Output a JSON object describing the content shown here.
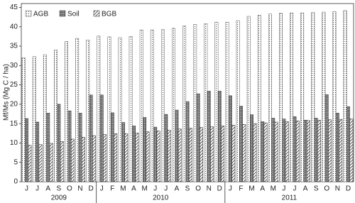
{
  "chart_data": {
    "type": "bar",
    "y_label": "Mf/Ms (Mg C / ha)",
    "categories": [
      "J",
      "J",
      "A",
      "S",
      "O",
      "N",
      "D",
      "J",
      "F",
      "M",
      "A",
      "M",
      "J",
      "J",
      "A",
      "S",
      "O",
      "N",
      "D",
      "J",
      "F",
      "M",
      "A",
      "M",
      "J",
      "J",
      "A",
      "S",
      "O",
      "N",
      "D"
    ],
    "groups": [
      {
        "label": "2009",
        "size": 7
      },
      {
        "label": "2010",
        "size": 12
      },
      {
        "label": "2011",
        "size": 12
      }
    ],
    "series": [
      {
        "name": "AGB",
        "color": "#555555",
        "pattern": "dots",
        "values": [
          32,
          32.3,
          32.8,
          34,
          36.2,
          37,
          36.6,
          37.6,
          37.4,
          37.2,
          37.5,
          39.2,
          39.2,
          39.3,
          39.6,
          40.2,
          40.6,
          40.8,
          41.2,
          41.2,
          41.6,
          42.7,
          43,
          43.3,
          43.5,
          43.6,
          43.6,
          43.7,
          43.8,
          43.9,
          44.2
        ]
      },
      {
        "name": "Soil",
        "color": "#333333",
        "pattern": "grid",
        "values": [
          16.3,
          15.4,
          17.7,
          20,
          18.3,
          17.7,
          22.4,
          22.4,
          17.8,
          15.3,
          14.4,
          16.6,
          14.1,
          17.4,
          18.5,
          20.7,
          22.7,
          23.4,
          23.4,
          22.2,
          19.5,
          17.3,
          15.5,
          16.4,
          16.2,
          16.8,
          15.9,
          16.4,
          22.5,
          17.7,
          19.4
        ]
      },
      {
        "name": "BGB",
        "color": "#222222",
        "pattern": "hatch",
        "values": [
          9.4,
          9.6,
          9.9,
          10.4,
          11,
          11.5,
          11.9,
          12.2,
          12.4,
          12.4,
          12.6,
          12.9,
          13.1,
          13.3,
          13.6,
          13.8,
          14,
          14.2,
          14.4,
          14.6,
          14.8,
          15,
          15.2,
          15.4,
          15.5,
          15.7,
          15.8,
          15.9,
          16,
          16.1,
          16.2
        ]
      }
    ],
    "ylim": [
      0,
      46
    ],
    "yticks": [
      0,
      5,
      10,
      15,
      20,
      25,
      30,
      35,
      40,
      45
    ],
    "legend": "top-left"
  }
}
